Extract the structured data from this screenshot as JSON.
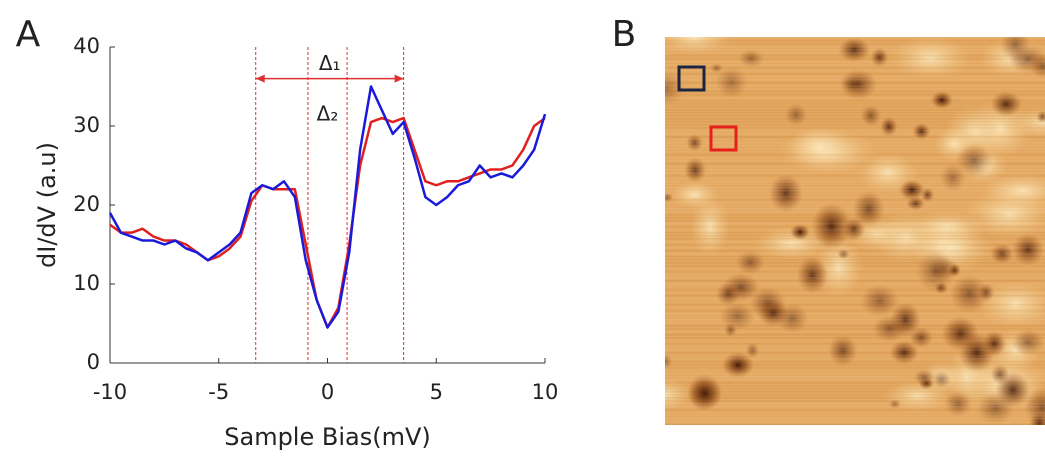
{
  "panel_labels": [
    "A",
    "B"
  ],
  "chart_data": {
    "type": "line",
    "xlabel": "Sample Bias(mV)",
    "ylabel": "dI/dV (a.u)",
    "x": [
      -10,
      -9.5,
      -9,
      -8.5,
      -8,
      -7.5,
      -7,
      -6.5,
      -6,
      -5.5,
      -5,
      -4.5,
      -4,
      -3.5,
      -3,
      -2.5,
      -2,
      -1.5,
      -1,
      -0.5,
      0,
      0.5,
      1,
      1.5,
      2,
      2.5,
      3,
      3.5,
      4,
      4.5,
      5,
      5.5,
      6,
      6.5,
      7,
      7.5,
      8,
      8.5,
      9,
      9.5,
      10
    ],
    "series": [
      {
        "color": "#e0201e",
        "values": [
          17.5,
          16.5,
          16.5,
          17,
          16,
          15.5,
          15.5,
          15,
          14,
          13,
          13.5,
          14.5,
          16,
          20.5,
          22.5,
          22,
          22,
          22,
          15,
          8,
          4.5,
          7,
          15,
          25,
          30.5,
          31,
          30.5,
          31,
          27,
          23,
          22.5,
          23,
          23,
          23.5,
          24,
          24.5,
          24.5,
          25,
          27,
          30,
          31
        ]
      },
      {
        "color": "#1a1adb",
        "values": [
          19,
          16.5,
          16,
          15.5,
          15.5,
          15,
          15.5,
          14.5,
          14,
          13,
          14,
          15,
          16.5,
          21.5,
          22.5,
          22,
          23,
          21,
          13,
          8,
          4.5,
          6.5,
          14,
          27,
          35,
          32,
          29,
          30.5,
          26,
          21,
          20,
          21,
          22.5,
          23,
          25,
          23.5,
          24,
          23.5,
          25,
          27,
          31.5
        ]
      }
    ],
    "xlim": [
      -10,
      10
    ],
    "xticks": [
      -10,
      -5,
      0,
      5,
      10
    ],
    "ylim": [
      0,
      40
    ],
    "yticks": [
      0,
      10,
      20,
      30,
      40
    ],
    "annotations": [
      {
        "text": "Δ₁",
        "x": [
          -3.3,
          3.5
        ],
        "arrow_y": 36
      },
      {
        "text": "Δ₂",
        "x": [
          -0.9,
          0.9
        ]
      }
    ]
  }
}
